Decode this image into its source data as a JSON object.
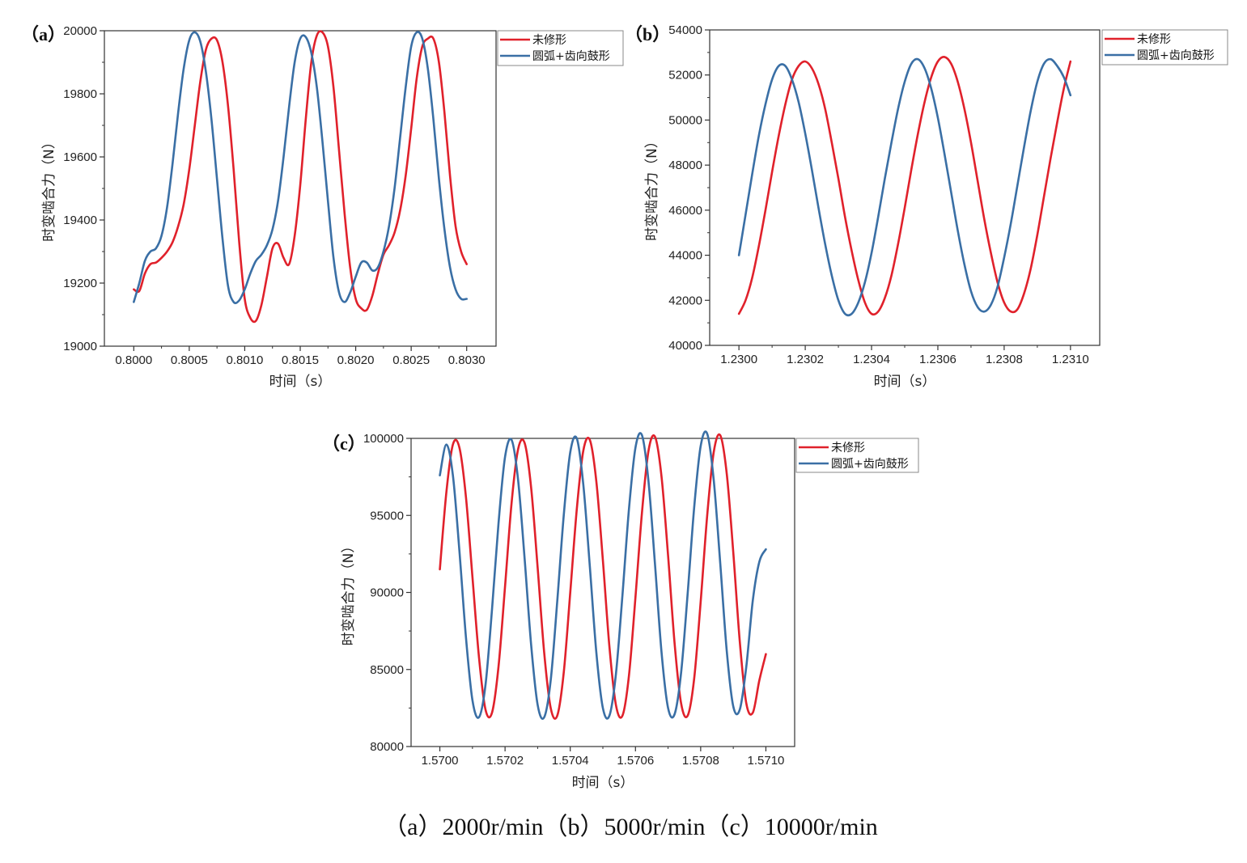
{
  "caption": "（a）2000r/min（b）5000r/min（c）10000r/min",
  "chart_data": [
    {
      "type": "line",
      "panel_label": "（a）",
      "xlabel": "时间（s）",
      "ylabel": "时变啮合力（N）",
      "xlim": [
        0.8,
        0.803
      ],
      "ylim": [
        19000,
        20000
      ],
      "xticks": [
        0.8,
        0.8005,
        0.801,
        0.8015,
        0.802,
        0.8025,
        0.803
      ],
      "xtick_labels": [
        "0.8000",
        "0.8005",
        "0.8010",
        "0.8015",
        "0.8020",
        "0.8025",
        "0.8030"
      ],
      "yticks": [
        19000,
        19200,
        19400,
        19600,
        19800,
        20000
      ],
      "ytick_labels": [
        "19000",
        "19200",
        "19400",
        "19600",
        "19800",
        "20000"
      ],
      "legend_position": "top-right",
      "series": [
        {
          "name": "未修形",
          "color": "#e0212b",
          "x": [
            0.8,
            0.80005,
            0.8001,
            0.80015,
            0.8002,
            0.80025,
            0.8003,
            0.80035,
            0.8004,
            0.80045,
            0.8005,
            0.80055,
            0.8006,
            0.80065,
            0.8007,
            0.80075,
            0.8008,
            0.80085,
            0.8009,
            0.80095,
            0.801,
            0.80105,
            0.8011,
            0.80115,
            0.8012,
            0.80125,
            0.8013,
            0.80135,
            0.8014,
            0.80145,
            0.8015,
            0.80155,
            0.8016,
            0.80165,
            0.8017,
            0.80175,
            0.8018,
            0.80185,
            0.8019,
            0.80195,
            0.802,
            0.80205,
            0.8021,
            0.80215,
            0.8022,
            0.80225,
            0.8023,
            0.80235,
            0.8024,
            0.80245,
            0.8025,
            0.80255,
            0.8026,
            0.80265,
            0.8027,
            0.80275,
            0.8028,
            0.80285,
            0.8029,
            0.80295,
            0.803
          ],
          "y": [
            19180,
            19175,
            19230,
            19260,
            19265,
            19280,
            19300,
            19330,
            19380,
            19450,
            19560,
            19700,
            19840,
            19940,
            19975,
            19970,
            19900,
            19760,
            19560,
            19330,
            19150,
            19090,
            19080,
            19130,
            19220,
            19310,
            19325,
            19280,
            19260,
            19350,
            19510,
            19720,
            19900,
            19985,
            19995,
            19950,
            19820,
            19620,
            19420,
            19250,
            19150,
            19120,
            19115,
            19160,
            19230,
            19290,
            19320,
            19360,
            19430,
            19540,
            19690,
            19850,
            19950,
            19975,
            19975,
            19900,
            19740,
            19540,
            19380,
            19300,
            19260
          ]
        },
        {
          "name": "圆弧+齿向鼓形",
          "color": "#3a6fa5",
          "x": [
            0.8,
            0.80005,
            0.8001,
            0.80015,
            0.8002,
            0.80025,
            0.8003,
            0.80035,
            0.8004,
            0.80045,
            0.8005,
            0.80055,
            0.8006,
            0.80065,
            0.8007,
            0.80075,
            0.8008,
            0.80085,
            0.8009,
            0.80095,
            0.801,
            0.80105,
            0.8011,
            0.80115,
            0.8012,
            0.80125,
            0.8013,
            0.80135,
            0.8014,
            0.80145,
            0.8015,
            0.80155,
            0.8016,
            0.80165,
            0.8017,
            0.80175,
            0.8018,
            0.80185,
            0.8019,
            0.80195,
            0.802,
            0.80205,
            0.8021,
            0.80215,
            0.8022,
            0.80225,
            0.8023,
            0.80235,
            0.8024,
            0.80245,
            0.8025,
            0.80255,
            0.8026,
            0.80265,
            0.8027,
            0.80275,
            0.8028,
            0.80285,
            0.8029,
            0.80295,
            0.803
          ],
          "y": [
            19140,
            19200,
            19270,
            19300,
            19310,
            19350,
            19440,
            19580,
            19740,
            19880,
            19970,
            19995,
            19965,
            19870,
            19720,
            19530,
            19340,
            19190,
            19140,
            19145,
            19180,
            19230,
            19270,
            19290,
            19320,
            19370,
            19460,
            19600,
            19760,
            19900,
            19975,
            19980,
            19930,
            19820,
            19650,
            19460,
            19280,
            19170,
            19140,
            19170,
            19220,
            19265,
            19265,
            19240,
            19250,
            19300,
            19380,
            19500,
            19660,
            19820,
            19950,
            19995,
            19975,
            19880,
            19720,
            19530,
            19370,
            19250,
            19180,
            19150,
            19150
          ]
        }
      ]
    },
    {
      "type": "line",
      "panel_label": "（b）",
      "xlabel": "时间（s）",
      "ylabel": "时变啮合力（N）",
      "xlim": [
        1.23,
        1.231
      ],
      "ylim": [
        40000,
        54000
      ],
      "xticks": [
        1.23,
        1.2302,
        1.2304,
        1.2306,
        1.2308,
        1.231
      ],
      "xtick_labels": [
        "1.2300",
        "1.2302",
        "1.2304",
        "1.2306",
        "1.2308",
        "1.2310"
      ],
      "yticks": [
        40000,
        42000,
        44000,
        46000,
        48000,
        50000,
        52000,
        54000
      ],
      "ytick_labels": [
        "40000",
        "42000",
        "44000",
        "46000",
        "48000",
        "50000",
        "52000",
        "54000"
      ],
      "legend_position": "top-right",
      "series": [
        {
          "name": "未修形",
          "color": "#e0212b",
          "x": [
            1.23,
            1.23002,
            1.23004,
            1.23006,
            1.23008,
            1.2301,
            1.23012,
            1.23014,
            1.23016,
            1.23018,
            1.2302,
            1.23022,
            1.23024,
            1.23026,
            1.23028,
            1.2303,
            1.23032,
            1.23034,
            1.23036,
            1.23038,
            1.2304,
            1.23042,
            1.23044,
            1.23046,
            1.23048,
            1.2305,
            1.23052,
            1.23054,
            1.23056,
            1.23058,
            1.2306,
            1.23062,
            1.23064,
            1.23066,
            1.23068,
            1.2307,
            1.23072,
            1.23074,
            1.23076,
            1.23078,
            1.2308,
            1.23082,
            1.23084,
            1.23086,
            1.23088,
            1.2309,
            1.23092,
            1.23094,
            1.23096,
            1.23098,
            1.231
          ],
          "y": [
            41400,
            42000,
            43000,
            44400,
            46000,
            47700,
            49300,
            50700,
            51800,
            52400,
            52600,
            52300,
            51600,
            50500,
            49000,
            47400,
            45700,
            44200,
            42900,
            41900,
            41400,
            41500,
            42100,
            43100,
            44500,
            46100,
            47800,
            49400,
            50800,
            51900,
            52600,
            52800,
            52500,
            51700,
            50500,
            49000,
            47300,
            45600,
            44100,
            42800,
            41900,
            41500,
            41600,
            42300,
            43400,
            44900,
            46600,
            48300,
            49900,
            51400,
            52600
          ]
        },
        {
          "name": "圆弧+齿向鼓形",
          "color": "#3a6fa5",
          "x": [
            1.23,
            1.23002,
            1.23004,
            1.23006,
            1.23008,
            1.2301,
            1.23012,
            1.23014,
            1.23016,
            1.23018,
            1.2302,
            1.23022,
            1.23024,
            1.23026,
            1.23028,
            1.2303,
            1.23032,
            1.23034,
            1.23036,
            1.23038,
            1.2304,
            1.23042,
            1.23044,
            1.23046,
            1.23048,
            1.2305,
            1.23052,
            1.23054,
            1.23056,
            1.23058,
            1.2306,
            1.23062,
            1.23064,
            1.23066,
            1.23068,
            1.2307,
            1.23072,
            1.23074,
            1.23076,
            1.23078,
            1.2308,
            1.23082,
            1.23084,
            1.23086,
            1.23088,
            1.2309,
            1.23092,
            1.23094,
            1.23096,
            1.23098,
            1.231
          ],
          "y": [
            44000,
            45800,
            47600,
            49300,
            50700,
            51800,
            52400,
            52400,
            51800,
            50800,
            49400,
            47800,
            46100,
            44500,
            43100,
            42000,
            41400,
            41400,
            41900,
            42800,
            44100,
            45700,
            47400,
            49000,
            50500,
            51700,
            52500,
            52700,
            52300,
            51400,
            50100,
            48500,
            46800,
            45100,
            43600,
            42400,
            41700,
            41500,
            41800,
            42600,
            43900,
            45400,
            47100,
            48800,
            50400,
            51700,
            52500,
            52700,
            52400,
            51900,
            51100
          ]
        }
      ]
    },
    {
      "type": "line",
      "panel_label": "（c）",
      "xlabel": "时间（s）",
      "ylabel": "时变啮合力（N）",
      "xlim": [
        1.57,
        1.571
      ],
      "ylim": [
        80000,
        100000
      ],
      "xticks": [
        1.57,
        1.5702,
        1.5704,
        1.5706,
        1.5708,
        1.571
      ],
      "xtick_labels": [
        "1.5700",
        "1.5702",
        "1.5704",
        "1.5706",
        "1.5708",
        "1.5710"
      ],
      "yticks": [
        80000,
        85000,
        90000,
        95000,
        100000
      ],
      "ytick_labels": [
        "80000",
        "85000",
        "90000",
        "95000",
        "100000"
      ],
      "legend_position": "top-right",
      "series": [
        {
          "name": "未修形",
          "color": "#e0212b",
          "x": [
            1.57,
            1.57002,
            1.57004,
            1.57006,
            1.57008,
            1.5701,
            1.57012,
            1.57014,
            1.57016,
            1.57018,
            1.5702,
            1.57022,
            1.57024,
            1.57026,
            1.57028,
            1.5703,
            1.57032,
            1.57034,
            1.57036,
            1.57038,
            1.5704,
            1.57042,
            1.57044,
            1.57046,
            1.57048,
            1.5705,
            1.57052,
            1.57054,
            1.57056,
            1.57058,
            1.5706,
            1.57062,
            1.57064,
            1.57066,
            1.57068,
            1.5707,
            1.57072,
            1.57074,
            1.57076,
            1.57078,
            1.5708,
            1.57082,
            1.57084,
            1.57086,
            1.57088,
            1.5709,
            1.57092,
            1.57094,
            1.57096,
            1.57098,
            1.571
          ],
          "y": [
            91500,
            96500,
            99600,
            99400,
            96200,
            91000,
            85800,
            82400,
            82200,
            85200,
            90400,
            95800,
            99300,
            99700,
            96800,
            91600,
            86100,
            82500,
            82000,
            84800,
            90000,
            95400,
            99200,
            99900,
            97200,
            92100,
            86500,
            82700,
            82000,
            84600,
            89700,
            95200,
            99200,
            100100,
            97500,
            92400,
            86700,
            82800,
            82000,
            84400,
            89400,
            95000,
            99100,
            100200,
            97700,
            92600,
            86800,
            82800,
            82200,
            84300,
            86000
          ]
        },
        {
          "name": "圆弧+齿向鼓形",
          "color": "#3a6fa5",
          "x": [
            1.57,
            1.57002,
            1.57004,
            1.57006,
            1.57008,
            1.5701,
            1.57012,
            1.57014,
            1.57016,
            1.57018,
            1.5702,
            1.57022,
            1.57024,
            1.57026,
            1.57028,
            1.5703,
            1.57032,
            1.57034,
            1.57036,
            1.57038,
            1.5704,
            1.57042,
            1.57044,
            1.57046,
            1.57048,
            1.5705,
            1.57052,
            1.57054,
            1.57056,
            1.57058,
            1.5706,
            1.57062,
            1.57064,
            1.57066,
            1.57068,
            1.5707,
            1.57072,
            1.57074,
            1.57076,
            1.57078,
            1.5708,
            1.57082,
            1.57084,
            1.57086,
            1.57088,
            1.5709,
            1.57092,
            1.57094,
            1.57096,
            1.57098,
            1.571
          ],
          "y": [
            97600,
            99600,
            97600,
            92700,
            87100,
            83000,
            81900,
            84000,
            88900,
            94500,
            98800,
            99900,
            97300,
            92200,
            86600,
            82700,
            81900,
            84300,
            89400,
            95000,
            99100,
            100000,
            97000,
            91700,
            86100,
            82500,
            82000,
            84700,
            89800,
            95400,
            99400,
            100200,
            97200,
            91800,
            86100,
            82500,
            82100,
            84800,
            89900,
            95500,
            99500,
            100300,
            97300,
            91900,
            86200,
            82600,
            82400,
            85200,
            89500,
            92000,
            92800
          ]
        }
      ]
    }
  ]
}
